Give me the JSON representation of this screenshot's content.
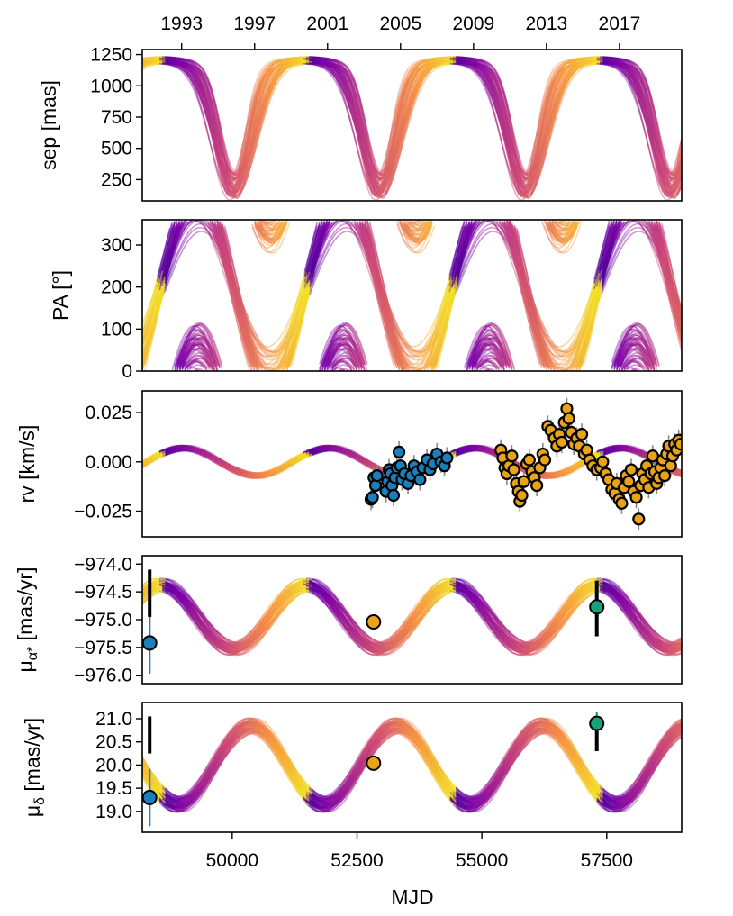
{
  "chart_data": [
    {
      "type": "line",
      "panel": "separation",
      "ylabel": "sep [mas]",
      "xlim": [
        48200,
        59000
      ],
      "ylim": [
        80,
        1290
      ],
      "yticks": [
        250,
        500,
        750,
        1000,
        1250
      ],
      "top_axis_years": [
        "1993",
        "1997",
        "2001",
        "2005",
        "2009",
        "2013",
        "2017"
      ],
      "top_axis_year_mjd": [
        48988,
        50449,
        51910,
        53371,
        54832,
        56293,
        57754
      ],
      "period_days": 2920,
      "phase_mjd": 48560,
      "sep_max": 1175,
      "sep_min_range": [
        130,
        320
      ],
      "n_orbits": 60,
      "colormap": "plasma"
    },
    {
      "type": "line",
      "panel": "position-angle",
      "ylabel": "PA [°]",
      "xlim": [
        48200,
        59000
      ],
      "ylim": [
        0,
        360
      ],
      "yticks": [
        0,
        100,
        200,
        300
      ],
      "period_days": 2920,
      "crossing_pa": 200,
      "colormap": "plasma"
    },
    {
      "type": "scatter",
      "panel": "radial-velocity",
      "ylabel": "rv [km/s]",
      "xlim": [
        48200,
        59000
      ],
      "ylim": [
        -0.038,
        0.036
      ],
      "yticks": [
        -0.025,
        0.0,
        0.025
      ],
      "ytick_labels": [
        "−0.025",
        "0.000",
        "0.025"
      ],
      "model_amplitude": 0.007,
      "series": [
        {
          "color": "#1a80bb",
          "points": [
            [
              52780,
              -0.019
            ],
            [
              52810,
              -0.018
            ],
            [
              52840,
              -0.008
            ],
            [
              52870,
              -0.012
            ],
            [
              52900,
              -0.007
            ],
            [
              53080,
              -0.015
            ],
            [
              53110,
              -0.01
            ],
            [
              53140,
              -0.004
            ],
            [
              53170,
              -0.006
            ],
            [
              53200,
              -0.012
            ],
            [
              53230,
              -0.017
            ],
            [
              53260,
              -0.008
            ],
            [
              53300,
              -0.003
            ],
            [
              53340,
              0.005
            ],
            [
              53370,
              -0.002
            ],
            [
              53400,
              -0.009
            ],
            [
              53450,
              -0.006
            ],
            [
              53520,
              -0.011
            ],
            [
              53580,
              -0.007
            ],
            [
              53640,
              -0.002
            ],
            [
              53700,
              -0.005
            ],
            [
              53760,
              -0.009
            ],
            [
              53820,
              -0.003
            ],
            [
              53900,
              0.001
            ],
            [
              53960,
              -0.004
            ],
            [
              54020,
              -0.001
            ],
            [
              54100,
              0.004
            ],
            [
              54180,
              0.0
            ],
            [
              54250,
              -0.002
            ],
            [
              54300,
              0.002
            ]
          ]
        },
        {
          "color": "#e8a317",
          "points": [
            [
              55380,
              0.006
            ],
            [
              55420,
              0.002
            ],
            [
              55460,
              -0.003
            ],
            [
              55500,
              -0.006
            ],
            [
              55540,
              -0.002
            ],
            [
              55600,
              0.003
            ],
            [
              55640,
              -0.004
            ],
            [
              55690,
              -0.011
            ],
            [
              55730,
              -0.015
            ],
            [
              55760,
              -0.02
            ],
            [
              55800,
              -0.017
            ],
            [
              55840,
              -0.01
            ],
            [
              55900,
              -0.001
            ],
            [
              55950,
              0.001
            ],
            [
              56000,
              -0.005
            ],
            [
              56050,
              -0.008
            ],
            [
              56100,
              -0.012
            ],
            [
              56160,
              -0.003
            ],
            [
              56220,
              0.004
            ],
            [
              56260,
              0.001
            ],
            [
              56320,
              0.018
            ],
            [
              56380,
              0.016
            ],
            [
              56450,
              0.012
            ],
            [
              56500,
              0.008
            ],
            [
              56550,
              0.014
            ],
            [
              56600,
              0.01
            ],
            [
              56650,
              0.02
            ],
            [
              56700,
              0.027
            ],
            [
              56740,
              0.022
            ],
            [
              56790,
              0.015
            ],
            [
              56840,
              0.009
            ],
            [
              56900,
              0.012
            ],
            [
              56950,
              0.008
            ],
            [
              57000,
              0.014
            ],
            [
              57050,
              0.004
            ],
            [
              57100,
              0.006
            ],
            [
              57160,
              0.001
            ],
            [
              57220,
              -0.002
            ],
            [
              57300,
              -0.004
            ],
            [
              57380,
              -0.003
            ],
            [
              57420,
              0.0
            ],
            [
              57480,
              -0.006
            ],
            [
              57540,
              -0.009
            ],
            [
              57600,
              -0.014
            ],
            [
              57660,
              -0.016
            ],
            [
              57700,
              -0.011
            ],
            [
              57750,
              -0.019
            ],
            [
              57800,
              -0.021
            ],
            [
              57850,
              -0.013
            ],
            [
              57890,
              -0.007
            ],
            [
              57940,
              -0.01
            ],
            [
              57990,
              -0.004
            ],
            [
              58040,
              -0.015
            ],
            [
              58090,
              -0.018
            ],
            [
              58140,
              -0.029
            ],
            [
              58180,
              -0.012
            ],
            [
              58220,
              -0.006
            ],
            [
              58260,
              -0.009
            ],
            [
              58300,
              -0.002
            ],
            [
              58340,
              -0.013
            ],
            [
              58380,
              -0.006
            ],
            [
              58420,
              0.003
            ],
            [
              58460,
              -0.005
            ],
            [
              58500,
              -0.011
            ],
            [
              58540,
              -0.008
            ],
            [
              58580,
              -0.003
            ],
            [
              58620,
              0.001
            ],
            [
              58660,
              -0.007
            ],
            [
              58700,
              0.004
            ],
            [
              58740,
              0.008
            ],
            [
              58780,
              -0.002
            ],
            [
              58820,
              0.003
            ],
            [
              58860,
              0.009
            ],
            [
              58900,
              0.006
            ],
            [
              58940,
              0.011
            ],
            [
              58980,
              0.009
            ]
          ]
        }
      ]
    },
    {
      "type": "scatter",
      "panel": "proper-motion-ra",
      "ylabel": "μ_α* [mas/yr]",
      "xlim": [
        48200,
        59000
      ],
      "ylim": [
        -976.15,
        -973.85
      ],
      "yticks": [
        -974.0,
        -974.5,
        -975.0,
        -975.5,
        -976.0
      ],
      "ytick_labels": [
        "−974.0",
        "−974.5",
        "−975.0",
        "−975.5",
        "−976.0"
      ],
      "model_center": -974.95,
      "model_amplitude": 0.55,
      "points": [
        {
          "x": 48348,
          "y": -975.42,
          "err": 0.55,
          "color": "#1a80bb"
        },
        {
          "x": 52830,
          "y": -975.04,
          "err": 0.0,
          "color": "#e8a317"
        },
        {
          "x": 57300,
          "y": -974.77,
          "err": 0.45,
          "color": "#17a17a"
        }
      ]
    },
    {
      "type": "scatter",
      "panel": "proper-motion-dec",
      "ylabel": "μ_δ [mas/yr]",
      "xlabel": "MJD",
      "xlim": [
        48200,
        59000
      ],
      "ylim": [
        18.55,
        21.35
      ],
      "yticks": [
        19.0,
        19.5,
        20.0,
        20.5,
        21.0
      ],
      "xticks": [
        50000,
        52500,
        55000,
        57500
      ],
      "model_center": 20.0,
      "model_amplitude": 0.85,
      "points": [
        {
          "x": 48348,
          "y": 19.3,
          "err": 0.62,
          "color": "#1a80bb"
        },
        {
          "x": 52830,
          "y": 20.04,
          "err": 0.0,
          "color": "#e8a317"
        },
        {
          "x": 57300,
          "y": 20.9,
          "err": 0.25,
          "color": "#17a17a"
        }
      ]
    }
  ]
}
